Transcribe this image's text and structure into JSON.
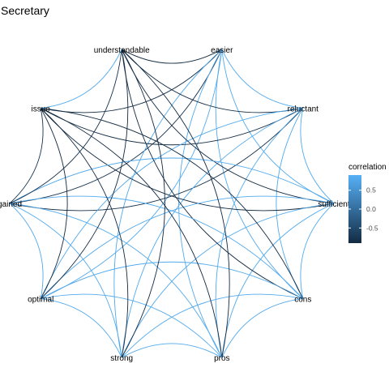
{
  "chart_data": {
    "type": "network",
    "title": "Secretary",
    "nodes": [
      "easier",
      "reluctant",
      "sufficient",
      "cons",
      "pros",
      "strong",
      "optimal",
      "gained",
      "issue",
      "understandable"
    ],
    "edges": [
      {
        "from": "easier",
        "to": "understandable",
        "correlation": -0.9
      },
      {
        "from": "easier",
        "to": "issue",
        "correlation": -0.9
      },
      {
        "from": "easier",
        "to": "gained",
        "correlation": -0.8
      },
      {
        "from": "easier",
        "to": "optimal",
        "correlation": 0.8
      },
      {
        "from": "easier",
        "to": "strong",
        "correlation": 0.8
      },
      {
        "from": "easier",
        "to": "pros",
        "correlation": 0.8
      },
      {
        "from": "easier",
        "to": "cons",
        "correlation": 0.8
      },
      {
        "from": "easier",
        "to": "sufficient",
        "correlation": 0.8
      },
      {
        "from": "easier",
        "to": "reluctant",
        "correlation": 0.8
      },
      {
        "from": "reluctant",
        "to": "understandable",
        "correlation": -0.9
      },
      {
        "from": "reluctant",
        "to": "issue",
        "correlation": -0.9
      },
      {
        "from": "reluctant",
        "to": "gained",
        "correlation": -0.8
      },
      {
        "from": "reluctant",
        "to": "optimal",
        "correlation": 0.8
      },
      {
        "from": "reluctant",
        "to": "strong",
        "correlation": 0.8
      },
      {
        "from": "reluctant",
        "to": "pros",
        "correlation": 0.8
      },
      {
        "from": "reluctant",
        "to": "cons",
        "correlation": 0.8
      },
      {
        "from": "reluctant",
        "to": "sufficient",
        "correlation": 0.8
      },
      {
        "from": "sufficient",
        "to": "understandable",
        "correlation": -0.9
      },
      {
        "from": "sufficient",
        "to": "issue",
        "correlation": -0.9
      },
      {
        "from": "sufficient",
        "to": "gained",
        "correlation": 0.8
      },
      {
        "from": "sufficient",
        "to": "optimal",
        "correlation": 0.8
      },
      {
        "from": "sufficient",
        "to": "strong",
        "correlation": 0.8
      },
      {
        "from": "sufficient",
        "to": "pros",
        "correlation": 0.8
      },
      {
        "from": "sufficient",
        "to": "cons",
        "correlation": 0.8
      },
      {
        "from": "cons",
        "to": "understandable",
        "correlation": -0.9
      },
      {
        "from": "cons",
        "to": "issue",
        "correlation": -0.9
      },
      {
        "from": "cons",
        "to": "gained",
        "correlation": 0.8
      },
      {
        "from": "cons",
        "to": "optimal",
        "correlation": 0.8
      },
      {
        "from": "cons",
        "to": "strong",
        "correlation": 0.8
      },
      {
        "from": "cons",
        "to": "pros",
        "correlation": 0.8
      },
      {
        "from": "pros",
        "to": "understandable",
        "correlation": -0.9
      },
      {
        "from": "pros",
        "to": "issue",
        "correlation": -0.9
      },
      {
        "from": "pros",
        "to": "gained",
        "correlation": 0.8
      },
      {
        "from": "pros",
        "to": "optimal",
        "correlation": 0.8
      },
      {
        "from": "pros",
        "to": "strong",
        "correlation": 0.8
      },
      {
        "from": "strong",
        "to": "understandable",
        "correlation": -0.9
      },
      {
        "from": "strong",
        "to": "issue",
        "correlation": -0.9
      },
      {
        "from": "strong",
        "to": "gained",
        "correlation": 0.8
      },
      {
        "from": "strong",
        "to": "optimal",
        "correlation": 0.8
      },
      {
        "from": "optimal",
        "to": "understandable",
        "correlation": -0.9
      },
      {
        "from": "optimal",
        "to": "issue",
        "correlation": -0.9
      },
      {
        "from": "optimal",
        "to": "gained",
        "correlation": 0.8
      },
      {
        "from": "gained",
        "to": "understandable",
        "correlation": -0.8
      },
      {
        "from": "gained",
        "to": "issue",
        "correlation": -0.8
      },
      {
        "from": "issue",
        "to": "understandable",
        "correlation": 0.8
      }
    ],
    "legend": {
      "title": "correlation",
      "ticks": [
        0.5,
        0.0,
        -0.5
      ],
      "tick_labels": [
        "0.5",
        "0.0",
        "-0.5"
      ],
      "range": [
        -0.9,
        0.9
      ],
      "low_color": "#132B43",
      "high_color": "#56B1F7",
      "position": "right"
    }
  }
}
